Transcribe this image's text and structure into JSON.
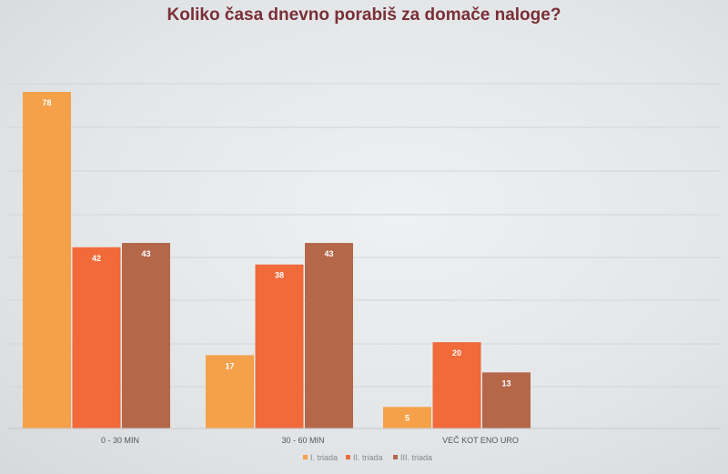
{
  "chart_data": {
    "type": "bar",
    "title": "Koliko časa dnevno porabiš za domače naloge?",
    "categories": [
      "0 - 30 MIN",
      "30 - 60 MIN",
      "VEČ KOT ENO URO"
    ],
    "series": [
      {
        "name": "I. triada",
        "values": [
          78,
          17,
          5
        ],
        "color": "#f5a14a"
      },
      {
        "name": "II. triada",
        "values": [
          42,
          38,
          20
        ],
        "color": "#f06a3a"
      },
      {
        "name": "III. triada",
        "values": [
          43,
          43,
          13
        ],
        "color": "#b5674a"
      }
    ],
    "ylim": [
      0,
      80
    ],
    "grid": true,
    "legend": "bottom"
  }
}
